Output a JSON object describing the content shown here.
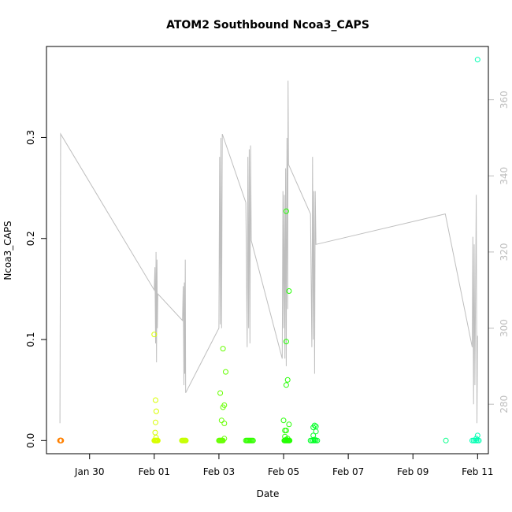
{
  "chart_data": {
    "type": "scatter",
    "title": "ATOM2 Southbound Ncoa3_CAPS",
    "xlabel": "Date",
    "ylabel": "Ncoa3_CAPS",
    "x_date_range": [
      "2025-01-28T16:00",
      "2025-02-11T08:00"
    ],
    "xticks": [
      {
        "label": "Jan 30",
        "date": "2025-01-30"
      },
      {
        "label": "Feb 01",
        "date": "2025-02-01"
      },
      {
        "label": "Feb 03",
        "date": "2025-02-03"
      },
      {
        "label": "Feb 05",
        "date": "2025-02-05"
      },
      {
        "label": "Feb 07",
        "date": "2025-02-07"
      },
      {
        "label": "Feb 09",
        "date": "2025-02-09"
      },
      {
        "label": "Feb 11",
        "date": "2025-02-11"
      }
    ],
    "ylim": [
      -0.013,
      0.39
    ],
    "yticks": [
      "0.0",
      "0.1",
      "0.2",
      "0.3"
    ],
    "y2lim": [
      267,
      374
    ],
    "y2ticks": [
      "280",
      "300",
      "320",
      "340",
      "360"
    ],
    "grid": false,
    "legend": "none",
    "secondary_line": {
      "color": "#bebebe",
      "description": "depth trace on right axis",
      "points": [
        [
          "2025-01-29T02:00",
          275
        ],
        [
          "2025-01-29T02:30",
          351
        ],
        [
          "2025-02-01T00:00",
          310
        ],
        [
          "2025-02-01T00:30",
          316
        ],
        [
          "2025-02-01T01:00",
          296
        ],
        [
          "2025-02-01T01:20",
          320
        ],
        [
          "2025-02-01T01:40",
          291
        ],
        [
          "2025-02-01T02:00",
          318
        ],
        [
          "2025-02-01T02:20",
          300
        ],
        [
          "2025-02-01T02:40",
          309
        ],
        [
          "2025-02-01T21:00",
          302
        ],
        [
          "2025-02-01T21:30",
          311
        ],
        [
          "2025-02-01T22:00",
          285
        ],
        [
          "2025-02-01T22:20",
          312
        ],
        [
          "2025-02-01T22:40",
          288
        ],
        [
          "2025-02-01T23:00",
          318
        ],
        [
          "2025-02-01T23:20",
          283
        ],
        [
          "2025-02-03T00:00",
          300
        ],
        [
          "2025-02-03T00:30",
          345
        ],
        [
          "2025-02-03T01:00",
          301
        ],
        [
          "2025-02-03T01:30",
          350
        ],
        [
          "2025-02-03T02:00",
          300
        ],
        [
          "2025-02-03T02:30",
          351
        ],
        [
          "2025-02-03T20:00",
          333
        ],
        [
          "2025-02-03T21:00",
          295
        ],
        [
          "2025-02-03T21:30",
          345
        ],
        [
          "2025-02-03T22:00",
          300
        ],
        [
          "2025-02-03T22:30",
          347
        ],
        [
          "2025-02-03T23:00",
          296
        ],
        [
          "2025-02-03T23:30",
          348
        ],
        [
          "2025-02-04T00:00",
          323
        ],
        [
          "2025-02-04T23:00",
          292
        ],
        [
          "2025-02-04T23:30",
          336
        ],
        [
          "2025-02-05T00:00",
          300
        ],
        [
          "2025-02-05T00:30",
          335
        ],
        [
          "2025-02-05T01:00",
          292
        ],
        [
          "2025-02-05T01:30",
          342
        ],
        [
          "2025-02-05T02:00",
          290
        ],
        [
          "2025-02-05T02:30",
          350
        ],
        [
          "2025-02-05T03:00",
          305
        ],
        [
          "2025-02-05T03:20",
          365
        ],
        [
          "2025-02-05T03:40",
          343
        ],
        [
          "2025-02-05T20:00",
          330
        ],
        [
          "2025-02-05T21:00",
          295
        ],
        [
          "2025-02-05T21:30",
          345
        ],
        [
          "2025-02-05T22:00",
          297
        ],
        [
          "2025-02-05T22:30",
          336
        ],
        [
          "2025-02-05T23:00",
          288
        ],
        [
          "2025-02-05T23:30",
          336
        ],
        [
          "2025-02-06T00:00",
          322
        ],
        [
          "2025-02-10T00:00",
          330
        ],
        [
          "2025-02-10T20:00",
          295
        ],
        [
          "2025-02-10T20:30",
          324
        ],
        [
          "2025-02-10T21:00",
          280
        ],
        [
          "2025-02-10T21:30",
          322
        ],
        [
          "2025-02-10T22:00",
          285
        ],
        [
          "2025-02-10T22:30",
          312
        ],
        [
          "2025-02-10T23:00",
          335
        ],
        [
          "2025-02-10T23:30",
          275
        ],
        [
          "2025-02-11T00:00",
          298
        ]
      ]
    },
    "series": [
      {
        "color": "#ff8000",
        "points": [
          [
            "2025-01-29T02:00",
            0
          ],
          [
            "2025-01-29T02:10",
            0
          ],
          [
            "2025-01-29T02:20",
            0
          ],
          [
            "2025-01-29T02:30",
            0
          ],
          [
            "2025-01-29T02:40",
            0
          ],
          [
            "2025-01-29T02:50",
            0
          ],
          [
            "2025-01-29T03:00",
            0
          ]
        ]
      },
      {
        "color": "#d9ff00",
        "points": [
          [
            "2025-02-01T00:00",
            0.105
          ],
          [
            "2025-02-01T01:00",
            0.04
          ],
          [
            "2025-02-01T01:30",
            0.029
          ],
          [
            "2025-02-01T01:00",
            0.018
          ],
          [
            "2025-02-01T00:40",
            0.008
          ],
          [
            "2025-02-01T01:20",
            0.003
          ],
          [
            "2025-02-01T00:00",
            0
          ],
          [
            "2025-02-01T00:20",
            0
          ],
          [
            "2025-02-01T00:40",
            0
          ],
          [
            "2025-02-01T01:00",
            0
          ],
          [
            "2025-02-01T01:20",
            0
          ],
          [
            "2025-02-01T01:40",
            0
          ],
          [
            "2025-02-01T02:00",
            0
          ],
          [
            "2025-02-01T02:20",
            0
          ],
          [
            "2025-02-01T02:40",
            0
          ]
        ]
      },
      {
        "color": "#c6ff00",
        "points": [
          [
            "2025-02-01T20:30",
            0
          ],
          [
            "2025-02-01T21:00",
            0
          ],
          [
            "2025-02-01T21:30",
            0
          ],
          [
            "2025-02-01T22:00",
            0
          ],
          [
            "2025-02-01T22:30",
            0
          ],
          [
            "2025-02-01T23:00",
            0
          ],
          [
            "2025-02-01T23:30",
            0
          ]
        ]
      },
      {
        "color": "#66ff00",
        "points": [
          [
            "2025-02-03T03:00",
            0.091
          ],
          [
            "2025-02-03T05:00",
            0.068
          ],
          [
            "2025-02-03T01:00",
            0.047
          ],
          [
            "2025-02-03T04:00",
            0.035
          ],
          [
            "2025-02-03T03:00",
            0.033
          ],
          [
            "2025-02-03T02:00",
            0.02
          ],
          [
            "2025-02-03T04:00",
            0.017
          ],
          [
            "2025-02-03T04:00",
            0.002
          ],
          [
            "2025-02-03T00:00",
            0
          ],
          [
            "2025-02-03T00:30",
            0
          ],
          [
            "2025-02-03T01:00",
            0
          ],
          [
            "2025-02-03T01:30",
            0
          ],
          [
            "2025-02-03T02:00",
            0
          ],
          [
            "2025-02-03T02:30",
            0
          ],
          [
            "2025-02-03T03:00",
            0
          ]
        ]
      },
      {
        "color": "#33ff00",
        "points": [
          [
            "2025-02-03T20:00",
            0
          ],
          [
            "2025-02-03T20:40",
            0
          ],
          [
            "2025-02-03T21:20",
            0
          ],
          [
            "2025-02-03T22:00",
            0
          ],
          [
            "2025-02-03T22:40",
            0
          ],
          [
            "2025-02-03T23:20",
            0
          ],
          [
            "2025-02-04T00:00",
            0
          ],
          [
            "2025-02-04T00:40",
            0
          ],
          [
            "2025-02-04T01:20",
            0
          ]
        ]
      },
      {
        "color": "#22ff00",
        "points": [
          [
            "2025-02-05T02:00",
            0.227
          ],
          [
            "2025-02-05T04:00",
            0.148
          ],
          [
            "2025-02-05T02:00",
            0.098
          ],
          [
            "2025-02-05T03:00",
            0.06
          ],
          [
            "2025-02-05T02:00",
            0.055
          ],
          [
            "2025-02-05T00:00",
            0.02
          ],
          [
            "2025-02-05T04:00",
            0.016
          ],
          [
            "2025-02-05T01:00",
            0.01
          ],
          [
            "2025-02-05T02:00",
            0.01
          ],
          [
            "2025-02-05T01:00",
            0.004
          ],
          [
            "2025-02-05T03:00",
            0.002
          ],
          [
            "2025-02-05T02:00",
            0.001
          ],
          [
            "2025-02-05T00:30",
            0
          ],
          [
            "2025-02-05T01:00",
            0
          ],
          [
            "2025-02-05T01:30",
            0
          ],
          [
            "2025-02-05T02:00",
            0
          ],
          [
            "2025-02-05T02:30",
            0
          ],
          [
            "2025-02-05T03:00",
            0
          ],
          [
            "2025-02-05T03:30",
            0
          ],
          [
            "2025-02-05T04:00",
            0
          ],
          [
            "2025-02-05T04:30",
            0
          ]
        ]
      },
      {
        "color": "#00ff26",
        "points": [
          [
            "2025-02-05T23:00",
            0.015
          ],
          [
            "2025-02-06T00:00",
            0.014
          ],
          [
            "2025-02-05T22:00",
            0.013
          ],
          [
            "2025-02-06T00:00",
            0.009
          ],
          [
            "2025-02-05T22:00",
            0.005
          ],
          [
            "2025-02-05T23:00",
            0.001
          ],
          [
            "2025-02-05T20:00",
            0
          ],
          [
            "2025-02-05T21:00",
            0
          ],
          [
            "2025-02-05T22:00",
            0
          ],
          [
            "2025-02-05T23:00",
            0
          ],
          [
            "2025-02-06T00:00",
            0
          ],
          [
            "2025-02-06T01:00",
            0
          ]
        ]
      },
      {
        "color": "#00ff88",
        "points": [
          [
            "2025-02-10T00:30",
            0
          ]
        ]
      },
      {
        "color": "#00ffb3",
        "points": [
          [
            "2025-02-11T00:00",
            0.377
          ],
          [
            "2025-02-11T00:00",
            0.005
          ],
          [
            "2025-02-10T23:00",
            0.002
          ],
          [
            "2025-02-10T20:00",
            0
          ],
          [
            "2025-02-10T21:00",
            0
          ],
          [
            "2025-02-10T22:00",
            0
          ],
          [
            "2025-02-10T23:00",
            0
          ],
          [
            "2025-02-11T00:00",
            0
          ],
          [
            "2025-02-11T01:00",
            0
          ]
        ]
      }
    ]
  }
}
